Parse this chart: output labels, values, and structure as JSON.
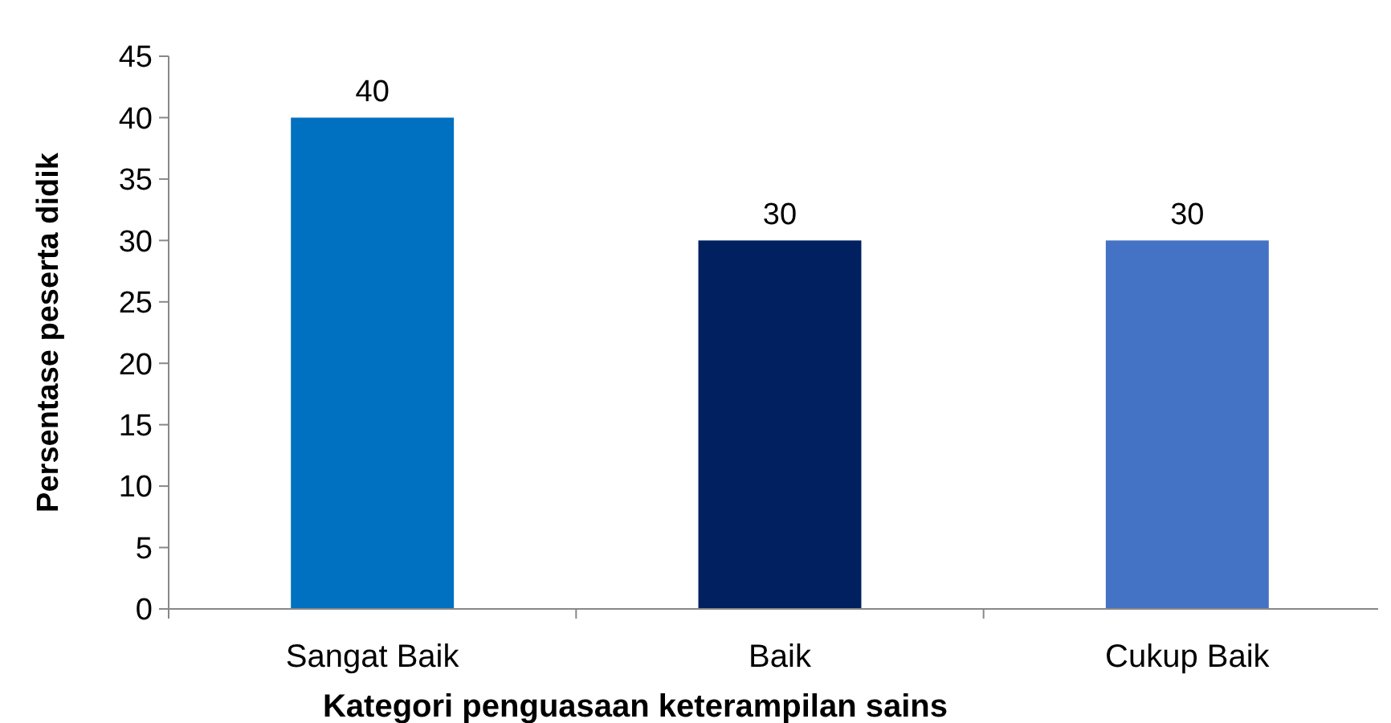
{
  "chart_data": {
    "type": "bar",
    "xlabel": "Kategori penguasaan keterampilan sains",
    "ylabel": "Persentase peserta didik",
    "categories": [
      "Sangat Baik",
      "Baik",
      "Cukup Baik"
    ],
    "values": [
      40,
      30,
      30
    ],
    "colors": [
      "#0070c0",
      "#002060",
      "#4472c4"
    ],
    "ylim": [
      0,
      45
    ],
    "yticks": [
      0,
      5,
      10,
      15,
      20,
      25,
      30,
      35,
      40,
      45
    ],
    "data_labels": true,
    "grid": false
  }
}
